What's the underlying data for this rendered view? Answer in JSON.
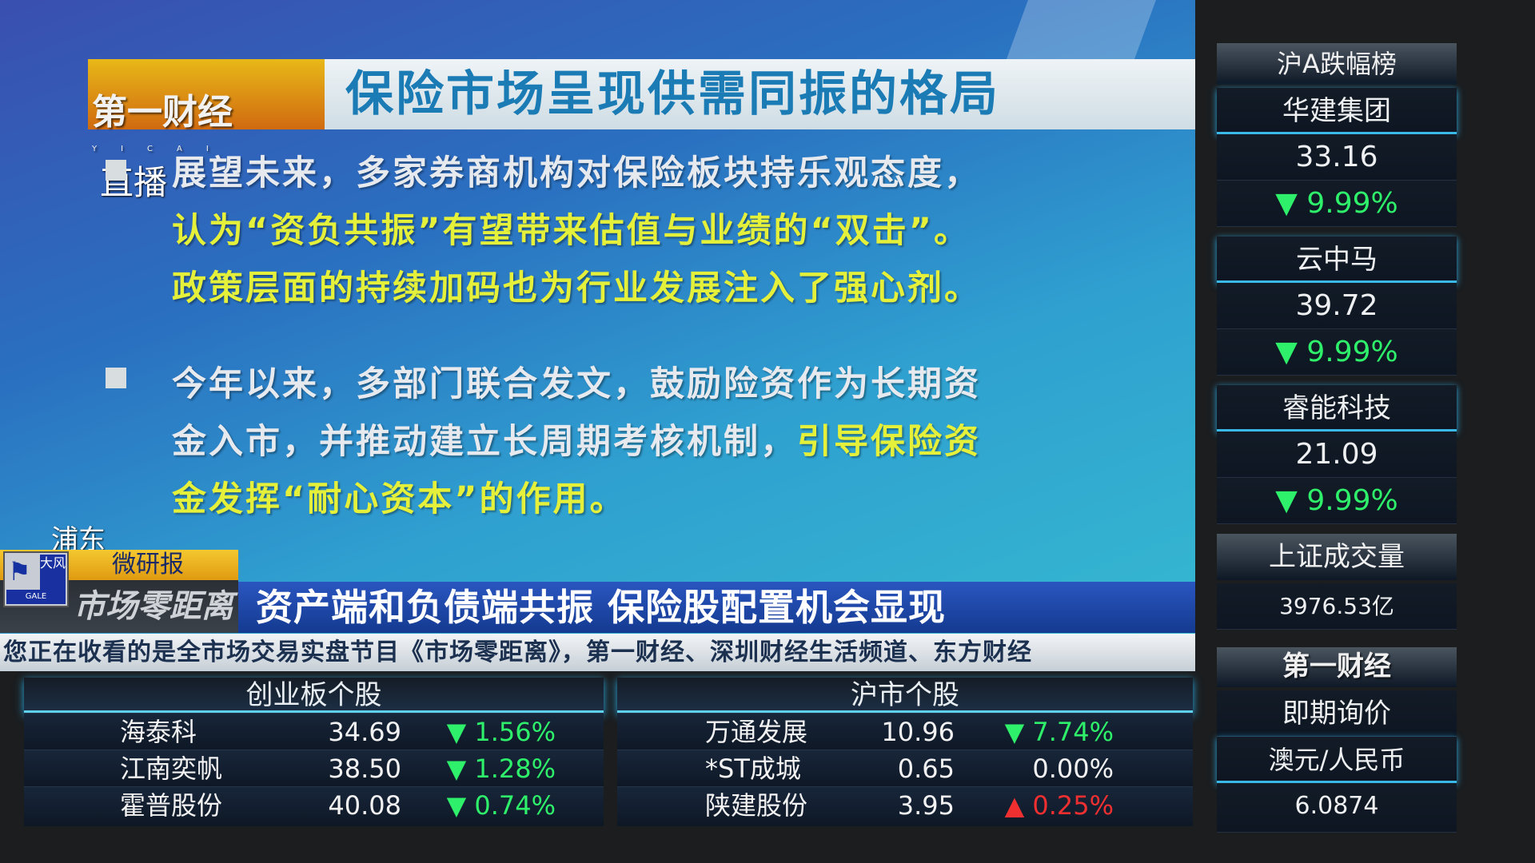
{
  "slide": {
    "title": "保险市场呈现供需同振的格局",
    "logo": "第一财经",
    "logo_sub": "YICAI",
    "live_label": "直播",
    "bullet1": [
      [
        {
          "t": "展望未来，多家券商机构对保险板块持乐观态度，",
          "c": "w"
        }
      ],
      [
        {
          "t": "认为“资负共振”有望带来估值与业绩的“双击”。",
          "c": "y"
        }
      ],
      [
        {
          "t": "政策层面的持续加码也为行业发展注入了强心剂。",
          "c": "y"
        }
      ]
    ],
    "bullet2": [
      [
        {
          "t": "今年以来，多部门联合发文，鼓励险资作为长期资",
          "c": "w"
        }
      ],
      [
        {
          "t": "金入市，并推动建立长周期考核机制，",
          "c": "w"
        },
        {
          "t": "引导保险资",
          "c": "y"
        }
      ],
      [
        {
          "t": "金发挥“耐心资本”的作用。",
          "c": "y"
        }
      ]
    ],
    "colors": {
      "white_text": "#e6e9ee",
      "yellow_text": "#e4f03a",
      "title_blue": "#1a7bb5"
    }
  },
  "lower_third": {
    "location": "浦东",
    "segment": "微研报",
    "show_name": "市场零距离",
    "badge": {
      "top": "大风",
      "bottom": "GALE"
    },
    "headline": "资产端和负债端共振 保险股配置机会显现",
    "ticker": "您正在收看的是全市场交易实盘节目《市场零距离》，第一财经、深圳财经生活频道、东方财经"
  },
  "tables": [
    {
      "title": "创业板个股",
      "rows": [
        {
          "name": "海泰科",
          "price": "34.69",
          "change": "▼ 1.56%",
          "dir": "down"
        },
        {
          "name": "江南奕帆",
          "price": "38.50",
          "change": "▼ 1.28%",
          "dir": "down"
        },
        {
          "name": "霍普股份",
          "price": "40.08",
          "change": "▼ 0.74%",
          "dir": "down"
        }
      ]
    },
    {
      "title": "沪市个股",
      "rows": [
        {
          "name": "万通发展",
          "price": "10.96",
          "change": "▼ 7.74%",
          "dir": "down"
        },
        {
          "name": "*ST成城",
          "price": "0.65",
          "change": "0.00%",
          "dir": "flat"
        },
        {
          "name": "陕建股份",
          "price": "3.95",
          "change": "▲ 0.25%",
          "dir": "up"
        }
      ]
    }
  ],
  "right_panel": {
    "title": "沪A跌幅榜",
    "stocks": [
      {
        "name": "华建集团",
        "price": "33.16",
        "change": "▼ 9.99%"
      },
      {
        "name": "云中马",
        "price": "39.72",
        "change": "▼ 9.99%"
      },
      {
        "name": "睿能科技",
        "price": "21.09",
        "change": "▼ 9.99%"
      }
    ],
    "volume_label": "上证成交量",
    "volume_value": "3976.53亿",
    "logo": "第一财经",
    "fx_label": "即期询价",
    "fx_pair": "澳元/人民币",
    "fx_value": "6.0874"
  }
}
